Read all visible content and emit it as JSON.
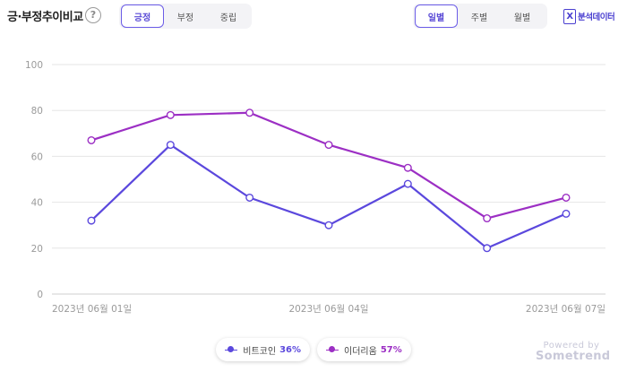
{
  "header": {
    "title": "긍·부정추이비교",
    "help_label": "?",
    "sentiment_tabs": [
      {
        "label": "긍정",
        "active": true
      },
      {
        "label": "부정",
        "active": false
      },
      {
        "label": "중립",
        "active": false
      }
    ],
    "period_tabs": [
      {
        "label": "일별",
        "active": true
      },
      {
        "label": "주별",
        "active": false
      },
      {
        "label": "월별",
        "active": false
      }
    ],
    "analysis_label": "분석데이터",
    "analysis_icon": "excel-icon",
    "analysis_icon_glyph": "X"
  },
  "chart_data": {
    "type": "line",
    "x": [
      "2023-06-01",
      "2023-06-02",
      "2023-06-03",
      "2023-06-04",
      "2023-06-05",
      "2023-06-06",
      "2023-06-07"
    ],
    "xtick_labels": [
      "2023년 06월 01일",
      "2023년 06월 04일",
      "2023년 06월 07일"
    ],
    "xtick_indices": [
      0,
      3,
      6
    ],
    "ylim": [
      0,
      100
    ],
    "yticks": [
      0,
      20,
      40,
      60,
      80,
      100
    ],
    "grid": true,
    "series": [
      {
        "name": "비트코인",
        "percent": "36%",
        "color": "#5b48dd",
        "values": [
          32,
          65,
          42,
          30,
          48,
          20,
          35
        ]
      },
      {
        "name": "이더리움",
        "percent": "57%",
        "color": "#9c2fc4",
        "values": [
          67,
          78,
          79,
          65,
          55,
          33,
          42
        ]
      }
    ],
    "legend_position": "bottom-center"
  },
  "footer": {
    "powered_by": "Powered by",
    "brand": "Sometrend"
  }
}
